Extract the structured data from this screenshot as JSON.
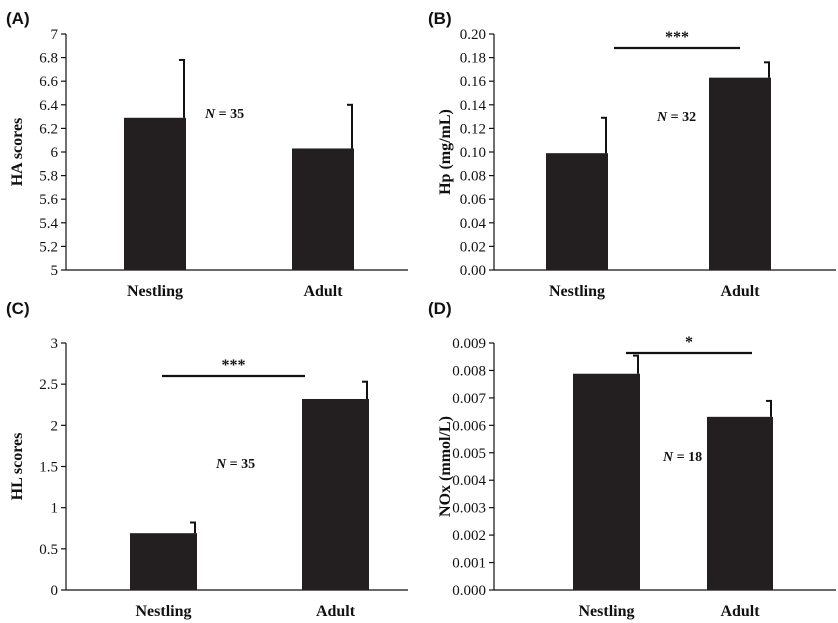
{
  "chart_data": [
    {
      "panel": "(A)",
      "type": "bar",
      "categories": [
        "Nestling",
        "Adult"
      ],
      "values": [
        6.29,
        6.03
      ],
      "errors": [
        0.49,
        0.37
      ],
      "ylabel": "HA scores",
      "ylim": [
        5,
        7
      ],
      "yticks": [
        "5",
        "5.2",
        "5.4",
        "5.6",
        "5.8",
        "6",
        "6.2",
        "6.4",
        "6.6",
        "6.8",
        "7"
      ],
      "yticks_values": [
        5,
        5.2,
        5.4,
        5.6,
        5.8,
        6,
        6.2,
        6.4,
        6.6,
        6.8,
        7
      ],
      "n_label": {
        "prefix": "N",
        "text": " = 35"
      },
      "significance": null
    },
    {
      "panel": "(B)",
      "type": "bar",
      "categories": [
        "Nestling",
        "Adult"
      ],
      "values": [
        0.099,
        0.163
      ],
      "errors": [
        0.03,
        0.013
      ],
      "ylabel": "Hp (mg/mL)",
      "ylim": [
        0,
        0.2
      ],
      "yticks": [
        "0.00",
        "0.02",
        "0.04",
        "0.06",
        "0.08",
        "0.10",
        "0.12",
        "0.14",
        "0.16",
        "0.18",
        "0.20"
      ],
      "yticks_values": [
        0,
        0.02,
        0.04,
        0.06,
        0.08,
        0.1,
        0.12,
        0.14,
        0.16,
        0.18,
        0.2
      ],
      "n_label": {
        "prefix": "N",
        "text": " = 32"
      },
      "significance": "***"
    },
    {
      "panel": "(C)",
      "type": "bar",
      "categories": [
        "Nestling",
        "Adult"
      ],
      "values": [
        0.69,
        2.32
      ],
      "errors": [
        0.13,
        0.21
      ],
      "ylabel": "HL scores",
      "ylim": [
        0,
        3
      ],
      "yticks": [
        "0",
        "0.5",
        "1",
        "1.5",
        "2",
        "2.5",
        "3"
      ],
      "yticks_values": [
        0,
        0.5,
        1,
        1.5,
        2,
        2.5,
        3
      ],
      "n_label": {
        "prefix": "N",
        "text": " = 35"
      },
      "significance": "***"
    },
    {
      "panel": "(D)",
      "type": "bar",
      "categories": [
        "Nestling",
        "Adult"
      ],
      "values": [
        0.00788,
        0.00631
      ],
      "errors": [
        0.00066,
        0.00058
      ],
      "ylabel": "NOx (mmol/L)",
      "ylim": [
        0,
        0.009
      ],
      "yticks": [
        "0.000",
        "0.001",
        "0.002",
        "0.003",
        "0.004",
        "0.005",
        "0.006",
        "0.007",
        "0.008",
        "0.009"
      ],
      "yticks_values": [
        0,
        0.001,
        0.002,
        0.003,
        0.004,
        0.005,
        0.006,
        0.007,
        0.008,
        0.009
      ],
      "n_label": {
        "prefix": "N",
        "text": " = 18"
      },
      "significance": "*"
    }
  ]
}
